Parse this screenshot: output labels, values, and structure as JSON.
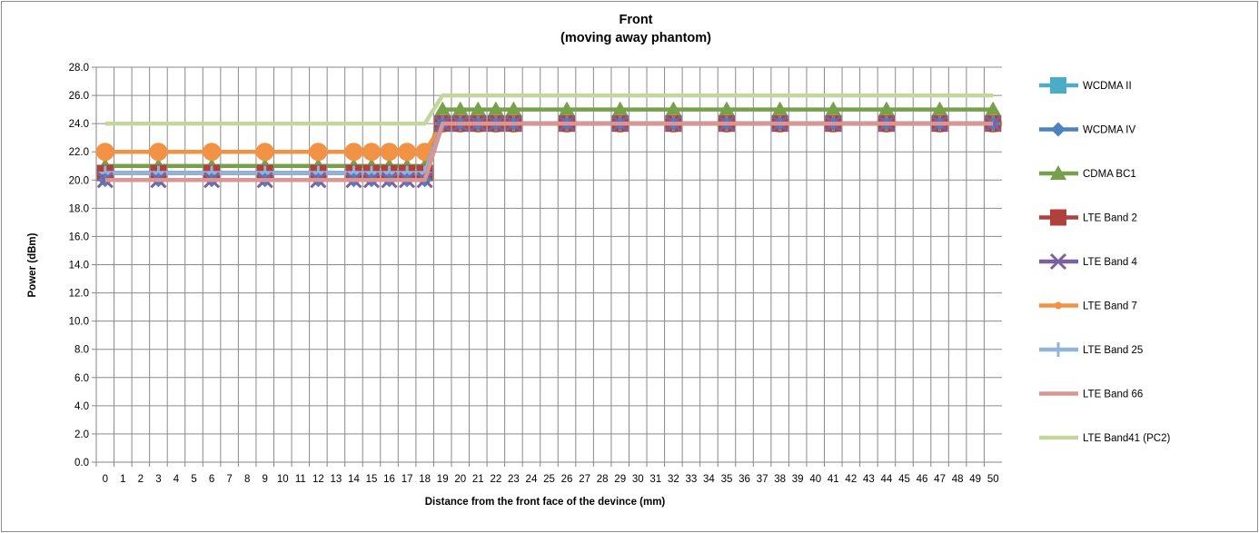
{
  "chart_data": {
    "type": "line",
    "title": "Front",
    "subtitle": "(moving away phantom)",
    "xlabel": "Distance from the front face of the devince (mm)",
    "ylabel": "Power (dBm)",
    "categories": [
      "0",
      "1",
      "2",
      "3",
      "4",
      "5",
      "6",
      "7",
      "8",
      "9",
      "10",
      "11",
      "12",
      "13",
      "14",
      "15",
      "16",
      "17",
      "18",
      "19",
      "20",
      "21",
      "22",
      "23",
      "24",
      "25",
      "26",
      "27",
      "28",
      "29",
      "30",
      "31",
      "32",
      "33",
      "34",
      "35",
      "36",
      "37",
      "38",
      "39",
      "40",
      "41",
      "42",
      "43",
      "44",
      "45",
      "46",
      "47",
      "48",
      "49",
      "50"
    ],
    "ylim": [
      0,
      28
    ],
    "yticks": [
      "0.0",
      "2.0",
      "4.0",
      "6.0",
      "8.0",
      "10.0",
      "12.0",
      "14.0",
      "16.0",
      "18.0",
      "20.0",
      "22.0",
      "24.0",
      "26.0",
      "28.0"
    ],
    "grid": true,
    "legend_position": "right",
    "series": [
      {
        "name": "WCDMA II",
        "color": "#4bacc6",
        "marker": "square",
        "x": [
          "0",
          "3",
          "6",
          "9",
          "12",
          "14",
          "15",
          "16",
          "17",
          "18",
          "19",
          "20",
          "21",
          "22",
          "23",
          "26",
          "29",
          "32",
          "35",
          "38",
          "41",
          "44",
          "47",
          "50"
        ],
        "values": [
          20.5,
          20.5,
          20.5,
          20.5,
          20.5,
          20.5,
          20.5,
          20.5,
          20.5,
          20.5,
          24,
          24,
          24,
          24,
          24,
          24,
          24,
          24,
          24,
          24,
          24,
          24,
          24,
          24
        ]
      },
      {
        "name": "WCDMA IV",
        "color": "#4f81bd",
        "marker": "diamond",
        "x": [
          "0",
          "3",
          "6",
          "9",
          "12",
          "14",
          "15",
          "16",
          "17",
          "18",
          "19",
          "20",
          "21",
          "22",
          "23",
          "26",
          "29",
          "32",
          "35",
          "38",
          "41",
          "44",
          "47",
          "50"
        ],
        "values": [
          20,
          20,
          20,
          20,
          20,
          20,
          20,
          20,
          20,
          20,
          24,
          24,
          24,
          24,
          24,
          24,
          24,
          24,
          24,
          24,
          24,
          24,
          24,
          24
        ]
      },
      {
        "name": "CDMA BC1",
        "color": "#77a04b",
        "marker": "triangle",
        "x": [
          "0",
          "3",
          "6",
          "9",
          "12",
          "14",
          "15",
          "16",
          "17",
          "18",
          "19",
          "20",
          "21",
          "22",
          "23",
          "26",
          "29",
          "32",
          "35",
          "38",
          "41",
          "44",
          "47",
          "50"
        ],
        "values": [
          21,
          21,
          21,
          21,
          21,
          21,
          21,
          21,
          21,
          21,
          25,
          25,
          25,
          25,
          25,
          25,
          25,
          25,
          25,
          25,
          25,
          25,
          25,
          25
        ]
      },
      {
        "name": "LTE Band 2",
        "color": "#b0403c",
        "marker": "square",
        "x": [
          "0",
          "3",
          "6",
          "9",
          "12",
          "14",
          "15",
          "16",
          "17",
          "18",
          "19",
          "20",
          "21",
          "22",
          "23",
          "26",
          "29",
          "32",
          "35",
          "38",
          "41",
          "44",
          "47",
          "50"
        ],
        "values": [
          20.5,
          20.5,
          20.5,
          20.5,
          20.5,
          20.5,
          20.5,
          20.5,
          20.5,
          20.5,
          24,
          24,
          24,
          24,
          24,
          24,
          24,
          24,
          24,
          24,
          24,
          24,
          24,
          24
        ]
      },
      {
        "name": "LTE Band 4",
        "color": "#7d60a0",
        "marker": "x",
        "x": [
          "0",
          "3",
          "6",
          "9",
          "12",
          "14",
          "15",
          "16",
          "17",
          "18",
          "19",
          "20",
          "21",
          "22",
          "23",
          "26",
          "29",
          "32",
          "35",
          "38",
          "41",
          "44",
          "47",
          "50"
        ],
        "values": [
          20,
          20,
          20,
          20,
          20,
          20,
          20,
          20,
          20,
          20,
          24,
          24,
          24,
          24,
          24,
          24,
          24,
          24,
          24,
          24,
          24,
          24,
          24,
          24
        ]
      },
      {
        "name": "LTE Band 7",
        "color": "#f29244",
        "marker": "circle",
        "x": [
          "0",
          "3",
          "6",
          "9",
          "12",
          "14",
          "15",
          "16",
          "17",
          "18",
          "19",
          "20",
          "21",
          "22",
          "23",
          "26",
          "29",
          "32",
          "35",
          "38",
          "41",
          "44",
          "47",
          "50"
        ],
        "values": [
          22,
          22,
          22,
          22,
          22,
          22,
          22,
          22,
          22,
          22,
          24,
          24,
          24,
          24,
          24,
          24,
          24,
          24,
          24,
          24,
          24,
          24,
          24,
          24
        ]
      },
      {
        "name": "LTE Band 25",
        "color": "#94b3d9",
        "marker": "plus",
        "x": [
          "0",
          "3",
          "6",
          "9",
          "12",
          "14",
          "15",
          "16",
          "17",
          "18",
          "19",
          "20",
          "21",
          "22",
          "23",
          "26",
          "29",
          "32",
          "35",
          "38",
          "41",
          "44",
          "47",
          "50"
        ],
        "values": [
          20.5,
          20.5,
          20.5,
          20.5,
          20.5,
          20.5,
          20.5,
          20.5,
          20.5,
          20.5,
          24,
          24,
          24,
          24,
          24,
          24,
          24,
          24,
          24,
          24,
          24,
          24,
          24,
          24
        ]
      },
      {
        "name": "LTE Band 66",
        "color": "#d99694",
        "marker": "none",
        "x": [
          "0",
          "3",
          "6",
          "9",
          "12",
          "14",
          "15",
          "16",
          "17",
          "18",
          "19",
          "20",
          "21",
          "22",
          "23",
          "26",
          "29",
          "32",
          "35",
          "38",
          "41",
          "44",
          "47",
          "50"
        ],
        "values": [
          20,
          20,
          20,
          20,
          20,
          20,
          20,
          20,
          20,
          20,
          24,
          24,
          24,
          24,
          24,
          24,
          24,
          24,
          24,
          24,
          24,
          24,
          24,
          24
        ]
      },
      {
        "name": "LTE Band41 (PC2)",
        "color": "#c3d69b",
        "marker": "none",
        "x": [
          "0",
          "3",
          "6",
          "9",
          "12",
          "14",
          "15",
          "16",
          "17",
          "18",
          "19",
          "20",
          "21",
          "22",
          "23",
          "26",
          "29",
          "32",
          "35",
          "38",
          "41",
          "44",
          "47",
          "50"
        ],
        "values": [
          24,
          24,
          24,
          24,
          24,
          24,
          24,
          24,
          24,
          24,
          26,
          26,
          26,
          26,
          26,
          26,
          26,
          26,
          26,
          26,
          26,
          26,
          26,
          26
        ]
      }
    ]
  }
}
